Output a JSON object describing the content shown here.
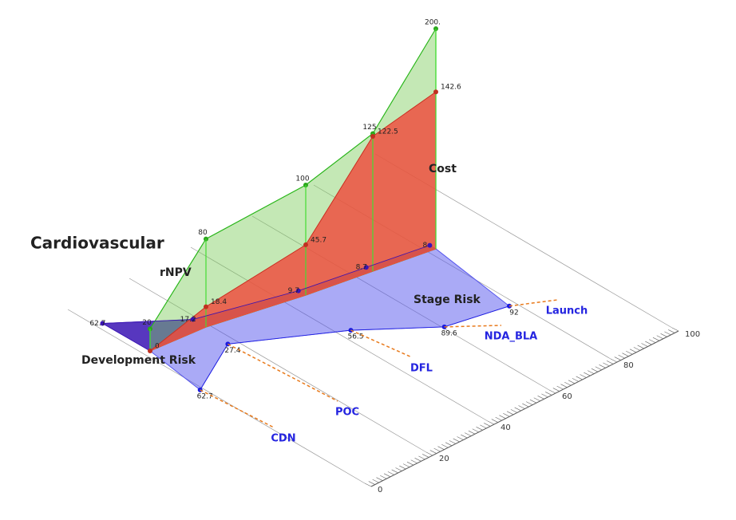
{
  "chart_data": {
    "type": "area3d",
    "title": "Cardiovascular",
    "categories": [
      "CDN",
      "POC",
      "DFL",
      "NDA_BLA",
      "Launch"
    ],
    "series": [
      {
        "name": "Cost",
        "color": "#7ccd5a",
        "values": [
          20,
          80,
          100,
          125,
          200
        ],
        "value_labels": [
          "20",
          "80",
          "100",
          "125",
          "200."
        ]
      },
      {
        "name": "rNPV",
        "color": "#f04a3c",
        "values": [
          0,
          18.4,
          45.7,
          122.5,
          142.6
        ]
      },
      {
        "name": "Development Risk",
        "color": "#3a14b4",
        "values": [
          62.7,
          17.2,
          9.7,
          8.7,
          8.0
        ]
      },
      {
        "name": "Stage Risk",
        "color": "#5555ee",
        "values": [
          62.7,
          27.4,
          56.5,
          89.6,
          92.0
        ]
      }
    ],
    "risk_lim": [
      0,
      100
    ],
    "risk_ticks": [
      0,
      20,
      40,
      60,
      80,
      100
    ]
  }
}
